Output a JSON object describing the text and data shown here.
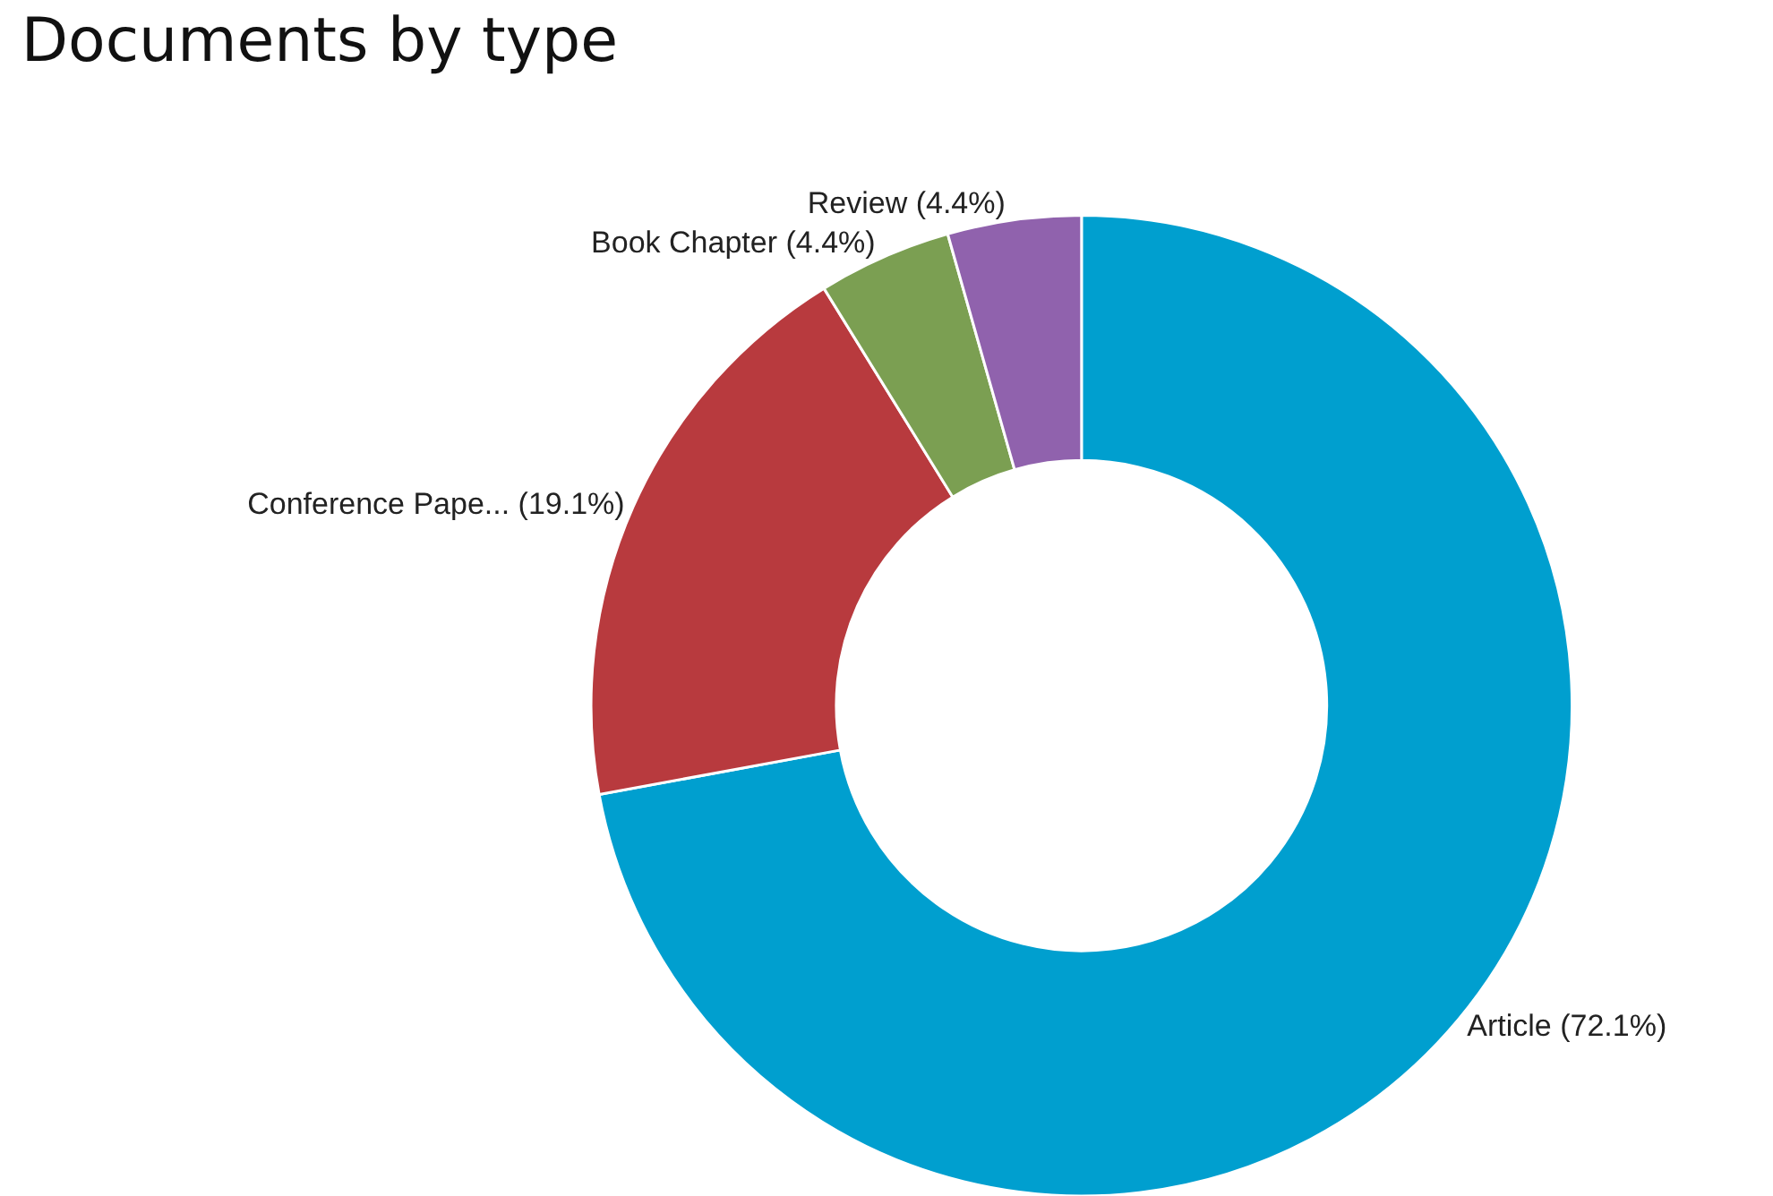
{
  "chart_data": {
    "type": "donut",
    "title": "Documents by type",
    "categories": [
      "Article (72.1%)",
      "Conference Pape... (19.1%)",
      "Book Chapter (4.4%)",
      "Review (4.4%)"
    ],
    "values": [
      72.1,
      19.1,
      4.4,
      4.4
    ],
    "colors": [
      "#009fcf",
      "#b83a3e",
      "#7b9f52",
      "#9062ad"
    ],
    "legend": false
  }
}
